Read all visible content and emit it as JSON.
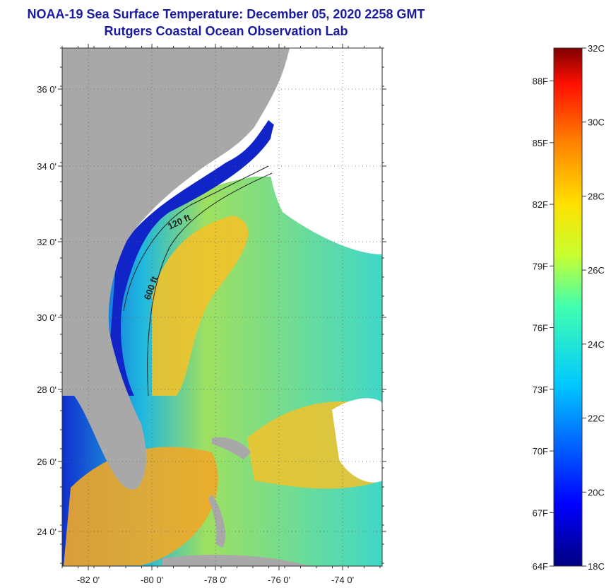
{
  "title": {
    "line1": "NOAA-19 Sea Surface Temperature:  December 05, 2020 2258 GMT",
    "line2": "Rutgers Coastal Ocean Observation Lab"
  },
  "map": {
    "lat_labels": [
      "36 0'",
      "34 0'",
      "32 0'",
      "30 0'",
      "28 0'",
      "26 0'",
      "24 0'"
    ],
    "lon_labels": [
      "-82 0'",
      "-80 0'",
      "-78 0'",
      "-76 0'",
      "-74 0'"
    ],
    "contour_labels": [
      "120 ft",
      "600 ft"
    ],
    "colors": {
      "land": "#a8a8a8",
      "cloud": "#ffffff",
      "warm": "#f2b825",
      "mid": "#8fe07a",
      "cool": "#1fc7d8",
      "cold": "#1024c8"
    }
  },
  "colorbar": {
    "celsius": [
      "32C",
      "30C",
      "28C",
      "26C",
      "24C",
      "22C",
      "20C",
      "18C"
    ],
    "fahrenheit": [
      "88F",
      "85F",
      "82F",
      "79F",
      "76F",
      "73F",
      "70F",
      "67F",
      "64F"
    ]
  }
}
